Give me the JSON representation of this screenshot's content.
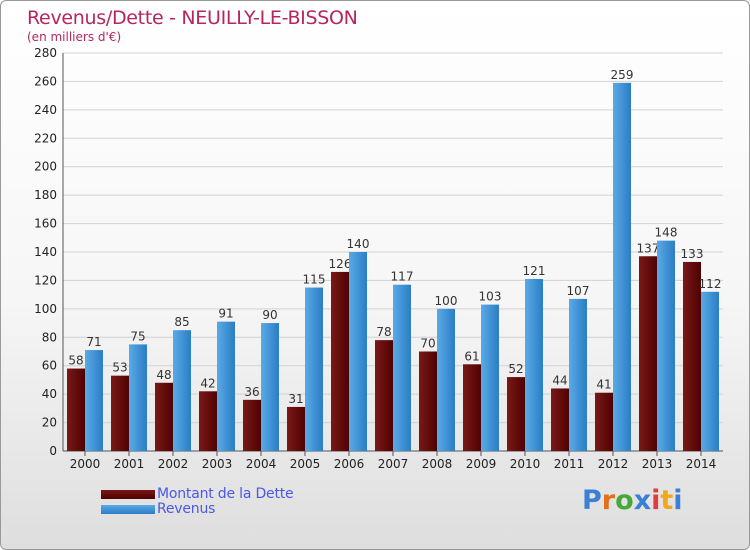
{
  "title": "Revenus/Dette - NEUILLY-LE-BISSON",
  "subtitle": "(en milliers d'€)",
  "logo": {
    "text": "Proxiti",
    "colors": [
      "#3b7fd6",
      "#e0701b",
      "#46a83b",
      "#3b7fd6",
      "#e23c3c",
      "#f0a81c",
      "#3b7fd6"
    ]
  },
  "colors": {
    "dette": "#7a1818",
    "dette_dark": "#4e0202",
    "revenus": "#5aaae6",
    "revenus_dark": "#2b7dc4",
    "title": "#b5265e",
    "legend_text": "#4a58e6"
  },
  "legend": [
    {
      "label": "Montant de la Dette",
      "series": "dette"
    },
    {
      "label": "Revenus",
      "series": "revenus"
    }
  ],
  "chart_data": {
    "type": "bar",
    "title": "Revenus/Dette - NEUILLY-LE-BISSON",
    "ylabel": "(en milliers d'€)",
    "ylim": [
      0,
      280
    ],
    "yticks": [
      0,
      20,
      40,
      60,
      80,
      100,
      120,
      140,
      160,
      180,
      200,
      220,
      240,
      260,
      280
    ],
    "grid": true,
    "categories": [
      "2000",
      "2001",
      "2002",
      "2003",
      "2004",
      "2005",
      "2006",
      "2007",
      "2008",
      "2009",
      "2010",
      "2011",
      "2012",
      "2013",
      "2014"
    ],
    "series": [
      {
        "name": "Montant de la Dette",
        "values": [
          58,
          53,
          48,
          42,
          36,
          31,
          126,
          78,
          70,
          61,
          52,
          44,
          41,
          137,
          133
        ]
      },
      {
        "name": "Revenus",
        "values": [
          71,
          75,
          85,
          91,
          90,
          115,
          140,
          117,
          100,
          103,
          121,
          107,
          259,
          148,
          112
        ]
      }
    ]
  }
}
